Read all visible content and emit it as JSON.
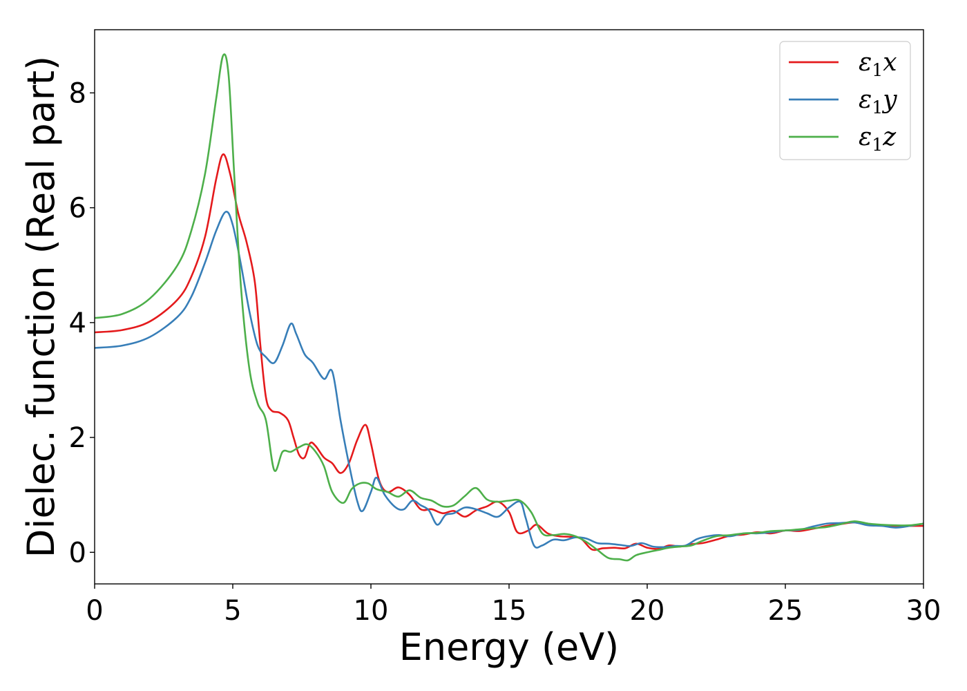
{
  "chart_data": {
    "type": "line",
    "title": "",
    "xlabel": "Energy (eV)",
    "ylabel": "Dielec. function (Real part)",
    "xlim": [
      0,
      30
    ],
    "ylim": [
      -0.55,
      9.1
    ],
    "xticks": [
      0,
      5,
      10,
      15,
      20,
      25,
      30
    ],
    "yticks": [
      0,
      2,
      4,
      6,
      8
    ],
    "grid": false,
    "legend_position": "top-right",
    "series": [
      {
        "name": "ε1x",
        "legend_symbol": "ε",
        "legend_sub": "1",
        "legend_var": "x",
        "color": "#e41a1c",
        "points": [
          [
            0,
            3.83
          ],
          [
            1,
            3.87
          ],
          [
            2,
            4.02
          ],
          [
            3,
            4.4
          ],
          [
            3.5,
            4.8
          ],
          [
            4,
            5.5
          ],
          [
            4.4,
            6.5
          ],
          [
            4.65,
            6.93
          ],
          [
            4.9,
            6.6
          ],
          [
            5.2,
            5.9
          ],
          [
            5.5,
            5.4
          ],
          [
            5.8,
            4.7
          ],
          [
            6.0,
            3.6
          ],
          [
            6.2,
            2.7
          ],
          [
            6.4,
            2.47
          ],
          [
            6.7,
            2.43
          ],
          [
            7.0,
            2.3
          ],
          [
            7.2,
            2.0
          ],
          [
            7.4,
            1.7
          ],
          [
            7.6,
            1.65
          ],
          [
            7.8,
            1.9
          ],
          [
            8.0,
            1.85
          ],
          [
            8.3,
            1.65
          ],
          [
            8.6,
            1.55
          ],
          [
            8.9,
            1.38
          ],
          [
            9.2,
            1.55
          ],
          [
            9.5,
            1.95
          ],
          [
            9.8,
            2.22
          ],
          [
            10.0,
            1.9
          ],
          [
            10.3,
            1.25
          ],
          [
            10.6,
            1.05
          ],
          [
            11.0,
            1.13
          ],
          [
            11.4,
            1.0
          ],
          [
            11.8,
            0.75
          ],
          [
            12.2,
            0.75
          ],
          [
            12.6,
            0.68
          ],
          [
            13.0,
            0.72
          ],
          [
            13.4,
            0.62
          ],
          [
            13.8,
            0.73
          ],
          [
            14.2,
            0.8
          ],
          [
            14.6,
            0.88
          ],
          [
            15.0,
            0.7
          ],
          [
            15.3,
            0.35
          ],
          [
            15.7,
            0.38
          ],
          [
            16.0,
            0.48
          ],
          [
            16.4,
            0.33
          ],
          [
            16.8,
            0.28
          ],
          [
            17.2,
            0.27
          ],
          [
            17.6,
            0.24
          ],
          [
            18.0,
            0.05
          ],
          [
            18.4,
            0.07
          ],
          [
            18.8,
            0.08
          ],
          [
            19.2,
            0.07
          ],
          [
            19.6,
            0.15
          ],
          [
            20.0,
            0.08
          ],
          [
            20.4,
            0.06
          ],
          [
            20.8,
            0.12
          ],
          [
            21.2,
            0.1
          ],
          [
            21.6,
            0.14
          ],
          [
            22.0,
            0.16
          ],
          [
            22.5,
            0.22
          ],
          [
            23,
            0.29
          ],
          [
            23.5,
            0.31
          ],
          [
            24,
            0.35
          ],
          [
            24.5,
            0.33
          ],
          [
            25,
            0.38
          ],
          [
            25.5,
            0.37
          ],
          [
            26,
            0.41
          ],
          [
            26.5,
            0.46
          ],
          [
            27,
            0.49
          ],
          [
            27.5,
            0.52
          ],
          [
            28,
            0.48
          ],
          [
            28.5,
            0.47
          ],
          [
            29,
            0.46
          ],
          [
            29.5,
            0.46
          ],
          [
            30,
            0.46
          ]
        ]
      },
      {
        "name": "ε1y",
        "legend_symbol": "ε",
        "legend_sub": "1",
        "legend_var": "y",
        "color": "#377eb8",
        "points": [
          [
            0,
            3.56
          ],
          [
            1,
            3.6
          ],
          [
            2,
            3.75
          ],
          [
            3,
            4.1
          ],
          [
            3.5,
            4.45
          ],
          [
            4,
            5.05
          ],
          [
            4.4,
            5.6
          ],
          [
            4.75,
            5.93
          ],
          [
            5.0,
            5.7
          ],
          [
            5.3,
            5.0
          ],
          [
            5.6,
            4.2
          ],
          [
            5.9,
            3.6
          ],
          [
            6.2,
            3.4
          ],
          [
            6.5,
            3.3
          ],
          [
            6.8,
            3.6
          ],
          [
            7.1,
            3.98
          ],
          [
            7.3,
            3.8
          ],
          [
            7.6,
            3.45
          ],
          [
            7.9,
            3.3
          ],
          [
            8.3,
            3.02
          ],
          [
            8.6,
            3.15
          ],
          [
            8.9,
            2.3
          ],
          [
            9.2,
            1.55
          ],
          [
            9.5,
            0.9
          ],
          [
            9.7,
            0.72
          ],
          [
            10.0,
            1.05
          ],
          [
            10.2,
            1.3
          ],
          [
            10.5,
            1.0
          ],
          [
            10.9,
            0.78
          ],
          [
            11.2,
            0.75
          ],
          [
            11.5,
            0.9
          ],
          [
            11.8,
            0.82
          ],
          [
            12.1,
            0.73
          ],
          [
            12.4,
            0.48
          ],
          [
            12.7,
            0.65
          ],
          [
            13.0,
            0.68
          ],
          [
            13.4,
            0.78
          ],
          [
            13.8,
            0.75
          ],
          [
            14.2,
            0.68
          ],
          [
            14.6,
            0.62
          ],
          [
            15.0,
            0.78
          ],
          [
            15.4,
            0.88
          ],
          [
            15.6,
            0.6
          ],
          [
            15.9,
            0.12
          ],
          [
            16.2,
            0.12
          ],
          [
            16.6,
            0.22
          ],
          [
            17.0,
            0.21
          ],
          [
            17.4,
            0.26
          ],
          [
            17.8,
            0.24
          ],
          [
            18.2,
            0.16
          ],
          [
            18.6,
            0.15
          ],
          [
            19.0,
            0.13
          ],
          [
            19.4,
            0.11
          ],
          [
            19.8,
            0.16
          ],
          [
            20.2,
            0.1
          ],
          [
            20.6,
            0.09
          ],
          [
            21.0,
            0.11
          ],
          [
            21.4,
            0.12
          ],
          [
            21.8,
            0.23
          ],
          [
            22.2,
            0.28
          ],
          [
            22.6,
            0.3
          ],
          [
            23,
            0.28
          ],
          [
            23.5,
            0.33
          ],
          [
            24,
            0.33
          ],
          [
            24.5,
            0.35
          ],
          [
            25,
            0.38
          ],
          [
            25.5,
            0.39
          ],
          [
            26,
            0.45
          ],
          [
            26.5,
            0.5
          ],
          [
            27,
            0.51
          ],
          [
            27.5,
            0.52
          ],
          [
            28,
            0.47
          ],
          [
            28.5,
            0.46
          ],
          [
            29,
            0.43
          ],
          [
            29.5,
            0.46
          ],
          [
            30,
            0.5
          ]
        ]
      },
      {
        "name": "ε1z",
        "legend_symbol": "ε",
        "legend_sub": "1",
        "legend_var": "z",
        "color": "#4daf4a",
        "points": [
          [
            0,
            4.08
          ],
          [
            1,
            4.15
          ],
          [
            2,
            4.42
          ],
          [
            3,
            5.0
          ],
          [
            3.5,
            5.6
          ],
          [
            4,
            6.6
          ],
          [
            4.4,
            7.9
          ],
          [
            4.65,
            8.65
          ],
          [
            4.85,
            8.3
          ],
          [
            5.05,
            6.6
          ],
          [
            5.3,
            4.6
          ],
          [
            5.6,
            3.2
          ],
          [
            5.9,
            2.6
          ],
          [
            6.2,
            2.3
          ],
          [
            6.5,
            1.43
          ],
          [
            6.8,
            1.75
          ],
          [
            7.1,
            1.75
          ],
          [
            7.4,
            1.83
          ],
          [
            7.7,
            1.88
          ],
          [
            8.0,
            1.75
          ],
          [
            8.3,
            1.5
          ],
          [
            8.6,
            1.05
          ],
          [
            9.0,
            0.86
          ],
          [
            9.3,
            1.1
          ],
          [
            9.6,
            1.2
          ],
          [
            9.9,
            1.2
          ],
          [
            10.2,
            1.1
          ],
          [
            10.6,
            1.05
          ],
          [
            11.0,
            0.97
          ],
          [
            11.4,
            1.08
          ],
          [
            11.8,
            0.95
          ],
          [
            12.2,
            0.9
          ],
          [
            12.6,
            0.8
          ],
          [
            13.0,
            0.82
          ],
          [
            13.4,
            0.98
          ],
          [
            13.8,
            1.12
          ],
          [
            14.2,
            0.92
          ],
          [
            14.6,
            0.88
          ],
          [
            15.0,
            0.9
          ],
          [
            15.4,
            0.9
          ],
          [
            15.8,
            0.7
          ],
          [
            16.2,
            0.33
          ],
          [
            16.6,
            0.3
          ],
          [
            17.0,
            0.32
          ],
          [
            17.4,
            0.28
          ],
          [
            17.8,
            0.18
          ],
          [
            18.2,
            0.04
          ],
          [
            18.6,
            -0.1
          ],
          [
            19.0,
            -0.12
          ],
          [
            19.3,
            -0.14
          ],
          [
            19.6,
            -0.05
          ],
          [
            20.0,
            0.0
          ],
          [
            20.4,
            0.04
          ],
          [
            20.8,
            0.08
          ],
          [
            21.2,
            0.1
          ],
          [
            21.6,
            0.12
          ],
          [
            22.0,
            0.2
          ],
          [
            22.5,
            0.28
          ],
          [
            23,
            0.3
          ],
          [
            23.5,
            0.33
          ],
          [
            24,
            0.34
          ],
          [
            24.5,
            0.37
          ],
          [
            25,
            0.38
          ],
          [
            25.5,
            0.4
          ],
          [
            26,
            0.42
          ],
          [
            26.5,
            0.44
          ],
          [
            27,
            0.49
          ],
          [
            27.5,
            0.54
          ],
          [
            28,
            0.5
          ],
          [
            28.5,
            0.48
          ],
          [
            29,
            0.47
          ],
          [
            29.5,
            0.47
          ],
          [
            30,
            0.5
          ]
        ]
      }
    ]
  }
}
